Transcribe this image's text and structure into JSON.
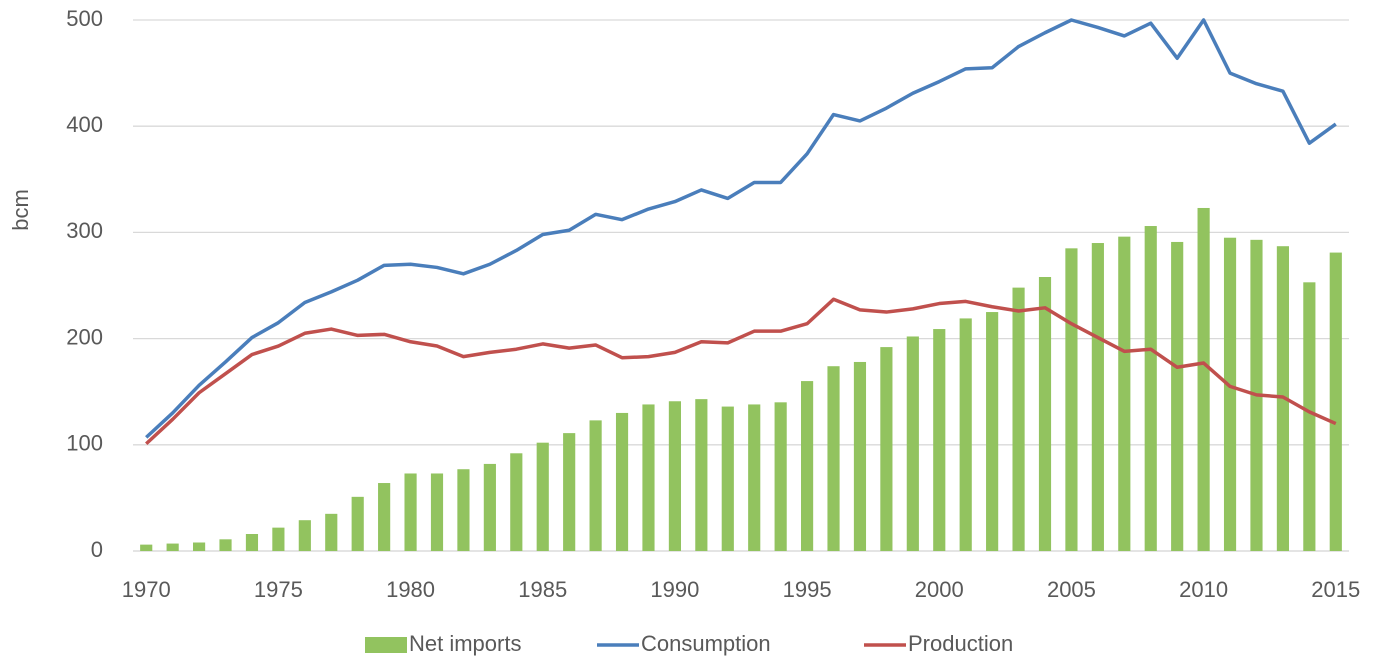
{
  "chart_data": {
    "type": "combo",
    "ylabel": "bcm",
    "x": [
      1970,
      1971,
      1972,
      1973,
      1974,
      1975,
      1976,
      1977,
      1978,
      1979,
      1980,
      1981,
      1982,
      1983,
      1984,
      1985,
      1986,
      1987,
      1988,
      1989,
      1990,
      1991,
      1992,
      1993,
      1994,
      1995,
      1996,
      1997,
      1998,
      1999,
      2000,
      2001,
      2002,
      2003,
      2004,
      2005,
      2006,
      2007,
      2008,
      2009,
      2010,
      2011,
      2012,
      2013,
      2014,
      2015
    ],
    "xlim": [
      1969.5,
      2015.5
    ],
    "xticks": [
      1970,
      1975,
      1980,
      1985,
      1990,
      1995,
      2000,
      2005,
      2010,
      2015
    ],
    "ylim": [
      0,
      500
    ],
    "yticks": [
      0,
      100,
      200,
      300,
      400,
      500
    ],
    "grid": true,
    "legend": "bottom",
    "series": [
      {
        "name": "Net imports",
        "type": "bar",
        "color": "#92c35f",
        "values": [
          6,
          7,
          8,
          11,
          16,
          22,
          29,
          35,
          51,
          64,
          73,
          73,
          77,
          82,
          92,
          102,
          111,
          123,
          130,
          138,
          141,
          143,
          136,
          138,
          140,
          160,
          174,
          178,
          192,
          202,
          209,
          219,
          225,
          248,
          258,
          285,
          290,
          296,
          306,
          291,
          323,
          295,
          293,
          287,
          253,
          281
        ]
      },
      {
        "name": "Consumption",
        "type": "line",
        "color": "#4a7ebb",
        "values": [
          107,
          130,
          156,
          178,
          201,
          215,
          234,
          244,
          255,
          269,
          270,
          267,
          261,
          270,
          283,
          298,
          302,
          317,
          312,
          322,
          329,
          340,
          332,
          347,
          347,
          374,
          411,
          405,
          417,
          431,
          442,
          454,
          455,
          475,
          488,
          500,
          493,
          485,
          497,
          464,
          500,
          450,
          440,
          433,
          384,
          402
        ]
      },
      {
        "name": "Production",
        "type": "line",
        "color": "#c0504d",
        "values": [
          101,
          124,
          149,
          167,
          185,
          193,
          205,
          209,
          203,
          204,
          197,
          193,
          183,
          187,
          190,
          195,
          191,
          194,
          182,
          183,
          187,
          197,
          196,
          207,
          207,
          214,
          237,
          227,
          225,
          228,
          233,
          235,
          230,
          226,
          229,
          214,
          201,
          188,
          190,
          173,
          177,
          155,
          147,
          145,
          131,
          120
        ]
      }
    ]
  }
}
